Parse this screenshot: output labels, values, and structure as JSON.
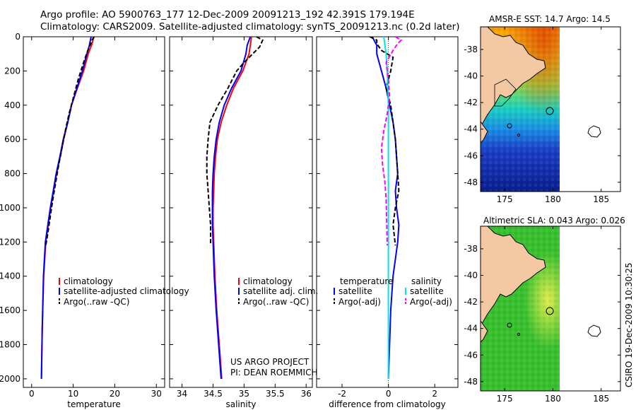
{
  "header": {
    "line1": "Argo profile: AO 5900763_177 12-Dec-2009 20091213_192 42.391S 179.194E",
    "line2": "Climatology: CARS2009. Satellite-adjusted climatology: synTS_20091213.nc (0.2d later)"
  },
  "side_label": "CSIRO 19-Dec-2009 10:30:25",
  "credit": {
    "line1": "US ARGO PROJECT",
    "line2": "PI: DEAN ROEMMICH"
  },
  "colors": {
    "climatology": "#ff0000",
    "satellite": "#0000ff",
    "argo": "#000000",
    "sal_sat": "#00e5e5",
    "sal_argo": "#ff00ff",
    "land": "#f4c8a2"
  },
  "chart_data": [
    {
      "type": "line",
      "xlabel": "temperature",
      "xlim": [
        -2,
        32
      ],
      "xticks": [
        0,
        10,
        20,
        30
      ],
      "ylim": [
        0,
        2050
      ],
      "yticks": [
        0,
        200,
        400,
        600,
        800,
        1000,
        1200,
        1400,
        1600,
        1800,
        2000
      ],
      "y_reversed": true,
      "legend": [
        "climatology",
        "satellite-adjusted climatology",
        "Argo(..raw -QC)"
      ],
      "series": [
        {
          "name": "climatology",
          "style": "solid",
          "color": "#ff0000",
          "x": [
            15.0,
            14.4,
            13.6,
            12.5,
            11.0,
            9.6,
            8.7,
            7.7,
            6.9,
            6.0,
            5.3,
            4.6,
            4.0,
            3.4,
            2.9,
            2.55,
            2.35
          ],
          "y": [
            0,
            50,
            100,
            200,
            300,
            400,
            500,
            600,
            700,
            800,
            900,
            1000,
            1100,
            1200,
            1400,
            1700,
            2000
          ]
        },
        {
          "name": "satellite-adjusted climatology",
          "style": "solid",
          "color": "#0000ff",
          "x": [
            14.3,
            13.9,
            13.3,
            12.2,
            10.9,
            9.6,
            8.7,
            7.6,
            6.8,
            5.9,
            5.2,
            4.5,
            3.9,
            3.3,
            2.85,
            2.55,
            2.35
          ],
          "y": [
            0,
            50,
            100,
            200,
            300,
            400,
            500,
            600,
            700,
            800,
            900,
            1000,
            1100,
            1200,
            1400,
            1700,
            2000
          ]
        },
        {
          "name": "Argo(..raw -QC)",
          "style": "dashed",
          "color": "#000000",
          "x": [
            15.0,
            14.5,
            14.2,
            13.5,
            12.5,
            11.2,
            10.1,
            9.0,
            8.1,
            7.3,
            6.5,
            5.8,
            5.1,
            4.5,
            3.9,
            3.4
          ],
          "y": [
            0,
            20,
            40,
            80,
            150,
            250,
            350,
            450,
            550,
            650,
            750,
            850,
            950,
            1050,
            1150,
            1220
          ]
        }
      ]
    },
    {
      "type": "line",
      "xlabel": "salinity",
      "xlim": [
        33.8,
        36.1
      ],
      "xticks": [
        34,
        34.5,
        35,
        35.5,
        36
      ],
      "xtick_labels": [
        "34",
        "34.5",
        "35",
        "35.5",
        "36"
      ],
      "ylim": [
        0,
        2050
      ],
      "y_reversed": true,
      "legend": [
        "climatology",
        "satellite adj. clim.",
        "Argo(..raw -QC)"
      ],
      "series": [
        {
          "name": "climatology",
          "style": "solid",
          "color": "#ff0000",
          "x": [
            35.12,
            35.1,
            35.08,
            34.98,
            34.83,
            34.72,
            34.63,
            34.57,
            34.54,
            34.52,
            34.51,
            34.5,
            34.5,
            34.51,
            34.53,
            34.56,
            34.6,
            34.64
          ],
          "y": [
            0,
            50,
            100,
            200,
            300,
            400,
            500,
            600,
            700,
            800,
            900,
            1000,
            1100,
            1200,
            1400,
            1600,
            1800,
            2000
          ]
        },
        {
          "name": "satellite adj. clim.",
          "style": "solid",
          "color": "#0000ff",
          "x": [
            35.1,
            35.05,
            35.03,
            34.95,
            34.8,
            34.68,
            34.6,
            34.55,
            34.52,
            34.5,
            34.49,
            34.49,
            34.49,
            34.5,
            34.52,
            34.55,
            34.59,
            34.63
          ],
          "y": [
            0,
            50,
            100,
            200,
            300,
            400,
            500,
            600,
            700,
            800,
            900,
            1000,
            1100,
            1200,
            1400,
            1600,
            1800,
            2000
          ]
        },
        {
          "name": "Argo(..raw -QC)",
          "style": "dashed",
          "color": "#000000",
          "x": [
            35.2,
            35.3,
            35.25,
            35.0,
            34.88,
            34.74,
            34.58,
            34.45,
            34.42,
            34.4,
            34.4,
            34.42,
            34.44,
            34.46,
            34.46
          ],
          "y": [
            0,
            20,
            60,
            150,
            200,
            300,
            400,
            500,
            600,
            700,
            800,
            900,
            1000,
            1100,
            1220
          ]
        }
      ]
    },
    {
      "type": "line",
      "xlabel": "difference from climatology",
      "xlim": [
        -3.1,
        3.0
      ],
      "xticks": [
        -2,
        0,
        2
      ],
      "ylim": [
        0,
        2050
      ],
      "y_reversed": true,
      "legend": [
        "temperature",
        "satellite",
        "Argo(-adj)",
        "salinity",
        "satellite",
        "Argo(-adj)"
      ],
      "series": [
        {
          "name": "temperature satellite",
          "style": "solid",
          "color": "#0000ff",
          "x": [
            -0.7,
            -0.5,
            -0.5,
            -0.3,
            -0.1,
            0.05,
            0.2,
            0.3,
            0.35,
            0.4,
            0.3,
            0.35,
            0.45,
            0.4,
            0.3,
            0.2,
            0.1,
            0.05,
            0.0
          ],
          "y": [
            0,
            50,
            100,
            200,
            300,
            400,
            500,
            600,
            700,
            800,
            900,
            1000,
            1100,
            1200,
            1300,
            1400,
            1600,
            1800,
            2000
          ]
        },
        {
          "name": "temperature Argo(-adj)",
          "style": "dashed",
          "color": "#000000",
          "x": [
            -0.8,
            -0.5,
            -0.5,
            -0.3,
            0.2,
            0.1,
            -0.1,
            0.1,
            0.2,
            0.3,
            0.4,
            0.45,
            0.3,
            0.2,
            0.3
          ],
          "y": [
            0,
            20,
            40,
            80,
            120,
            200,
            300,
            400,
            500,
            600,
            800,
            900,
            1000,
            1100,
            1220
          ]
        },
        {
          "name": "salinity satellite",
          "style": "solid",
          "color": "#00e5e5",
          "x": [
            -0.2,
            -0.15,
            -0.1,
            -0.05,
            -0.02,
            0.0,
            0.0,
            0.0,
            0.0,
            0.0,
            0.0,
            0.0,
            0.0
          ],
          "y": [
            0,
            50,
            100,
            200,
            300,
            400,
            600,
            800,
            1000,
            1200,
            1400,
            1700,
            2000
          ]
        },
        {
          "name": "salinity Argo(-adj)",
          "style": "dashed",
          "color": "#ff00ff",
          "x": [
            0.3,
            0.55,
            0.4,
            0.2,
            -0.1,
            0.0,
            0.05,
            -0.05,
            -0.2,
            -0.3,
            -0.25,
            -0.15,
            -0.1,
            -0.08,
            -0.05
          ],
          "y": [
            0,
            20,
            40,
            80,
            150,
            250,
            350,
            450,
            550,
            650,
            750,
            850,
            950,
            1050,
            1220
          ]
        }
      ]
    },
    {
      "type": "heatmap",
      "title": "AMSR-E SST: 14.7 Argo: 14.5",
      "xticks": [
        175,
        180,
        185
      ],
      "yticks": [
        -38,
        -40,
        -42,
        -44,
        -46,
        -48
      ],
      "xlim": [
        172.5,
        187
      ],
      "ylim": [
        -48.7,
        -36.3
      ],
      "data_extent_lon": [
        172.5,
        180
      ]
    },
    {
      "type": "heatmap",
      "title": "Altimetric SLA: 0.043 Argo: 0.026",
      "xticks": [
        175,
        180,
        185
      ],
      "yticks": [
        -38,
        -40,
        -42,
        -44,
        -46,
        -48
      ],
      "xlim": [
        172.5,
        187
      ],
      "ylim": [
        -48.7,
        -36.3
      ],
      "data_extent_lon": [
        172.5,
        180
      ]
    }
  ]
}
